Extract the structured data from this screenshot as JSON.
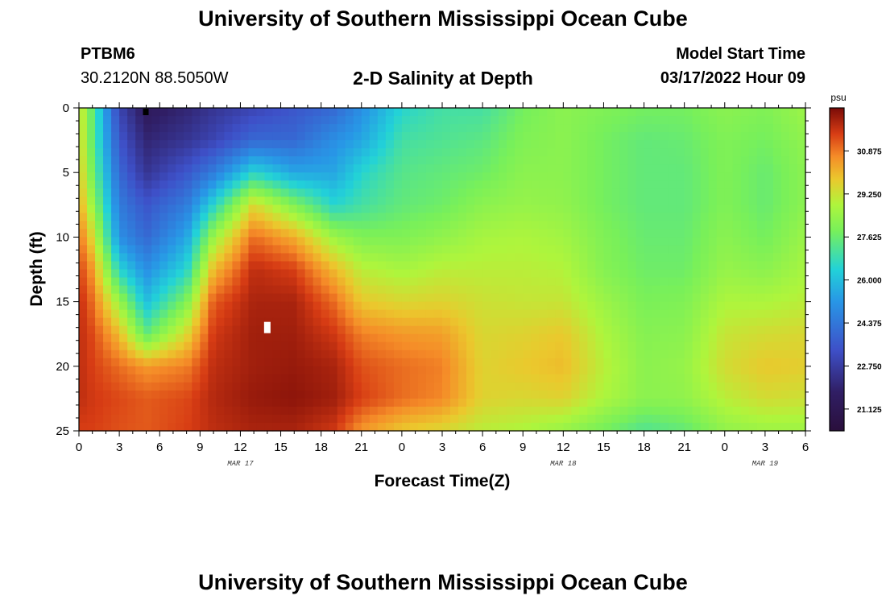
{
  "header": {
    "title": "University of Southern Mississippi Ocean Cube",
    "station": "PTBM6",
    "coordinates": "30.2120N  88.5050W",
    "subtitle": "2-D Salinity at Depth",
    "model_start_label": "Model Start Time",
    "model_start_value": "03/17/2022 Hour 09"
  },
  "footer": {
    "title": "University of Southern Mississippi Ocean Cube"
  },
  "colors": {
    "low": "#2a0f3c",
    "mid_blue": "#3e50c8",
    "cyan": "#22d2d8",
    "green": "#a8f43c",
    "orange": "#f07a20",
    "high": "#7a0b08"
  },
  "chart_data": {
    "type": "heatmap",
    "title": "2-D Salinity at Depth",
    "xlabel": "Forecast Time(Z)",
    "ylabel": "Depth (ft)",
    "x_ticks": [
      "0",
      "3",
      "6",
      "9",
      "12",
      "15",
      "18",
      "21",
      "0",
      "3",
      "6",
      "9",
      "12",
      "15",
      "18",
      "21",
      "0",
      "3",
      "6"
    ],
    "x_range_hours": [
      0,
      54
    ],
    "y_ticks": [
      "0",
      "5",
      "10",
      "15",
      "20",
      "25"
    ],
    "y_range_ft": [
      0,
      25
    ],
    "date_labels": [
      {
        "text": "MAR 17",
        "hour": 12
      },
      {
        "text": "MAR 18",
        "hour": 36
      },
      {
        "text": "MAR 19",
        "hour": 51
      }
    ],
    "colorbar": {
      "unit": "psu",
      "range": [
        20.3,
        32.5
      ],
      "ticks": [
        "30.875",
        "29.250",
        "27.625",
        "26.000",
        "24.375",
        "22.750",
        "21.125"
      ]
    },
    "markers": [
      {
        "type": "surface",
        "hour": 5,
        "depth_ft": 0.3
      },
      {
        "type": "bottom",
        "hour": 14,
        "depth_ft": 17
      }
    ],
    "salinity_anchors_psu": {
      "hours": [
        0,
        1,
        3,
        5,
        8,
        10,
        13,
        16,
        19,
        21,
        24,
        27,
        30,
        33,
        36,
        39,
        42,
        45,
        48,
        51,
        54
      ],
      "depths_ft": [
        0,
        2.5,
        5,
        7.5,
        10,
        12.5,
        15,
        17.5,
        20,
        22.5,
        25
      ],
      "values": [
        [
          29.5,
          27.5,
          23.0,
          21.5,
          22.0,
          22.5,
          23.0,
          23.5,
          24.0,
          25.0,
          26.5,
          27.0,
          27.0,
          27.8,
          28.2,
          28.0,
          27.8,
          27.8,
          28.2,
          28.0,
          28.5
        ],
        [
          29.7,
          27.5,
          23.5,
          22.0,
          22.5,
          23.0,
          24.0,
          24.0,
          25.0,
          25.5,
          27.0,
          27.2,
          27.4,
          28.0,
          28.2,
          27.8,
          27.5,
          27.6,
          28.0,
          27.8,
          28.3
        ],
        [
          29.9,
          27.8,
          24.0,
          22.5,
          23.5,
          24.5,
          26.5,
          25.5,
          25.5,
          26.5,
          27.3,
          27.5,
          27.7,
          28.2,
          28.2,
          27.8,
          27.5,
          27.5,
          28.0,
          27.6,
          28.2
        ],
        [
          30.3,
          28.5,
          24.5,
          23.5,
          24.5,
          26.5,
          29.5,
          28.0,
          26.5,
          27.0,
          27.5,
          27.7,
          28.2,
          28.4,
          28.3,
          27.8,
          27.5,
          27.5,
          28.0,
          27.6,
          28.2
        ],
        [
          31.0,
          29.5,
          25.0,
          24.0,
          25.5,
          28.5,
          31.0,
          30.2,
          28.5,
          28.0,
          28.0,
          28.3,
          28.7,
          28.8,
          28.6,
          28.0,
          27.6,
          27.6,
          28.2,
          27.8,
          28.5
        ],
        [
          31.5,
          30.5,
          26.5,
          25.0,
          26.5,
          30.0,
          31.8,
          31.5,
          30.0,
          29.0,
          28.7,
          29.0,
          29.0,
          29.0,
          28.9,
          28.1,
          27.7,
          27.7,
          28.4,
          28.2,
          28.7
        ],
        [
          31.8,
          31.0,
          28.5,
          26.0,
          28.0,
          31.2,
          32.0,
          32.0,
          31.0,
          29.8,
          29.5,
          29.6,
          29.3,
          29.2,
          29.2,
          28.5,
          27.9,
          28.0,
          28.8,
          28.8,
          29.0
        ],
        [
          31.8,
          31.4,
          30.0,
          27.5,
          29.5,
          31.6,
          32.1,
          32.1,
          31.6,
          30.8,
          30.5,
          30.4,
          29.5,
          29.6,
          29.8,
          28.8,
          28.1,
          28.2,
          29.2,
          29.4,
          29.5
        ],
        [
          31.8,
          31.5,
          31.0,
          30.5,
          30.8,
          31.8,
          32.1,
          32.2,
          32.0,
          31.3,
          31.0,
          30.8,
          29.6,
          29.8,
          30.0,
          29.0,
          28.2,
          28.4,
          29.4,
          29.8,
          29.7
        ],
        [
          31.8,
          31.6,
          31.4,
          31.2,
          31.4,
          31.9,
          32.2,
          32.3,
          32.1,
          31.5,
          31.0,
          30.7,
          29.6,
          29.5,
          29.6,
          28.8,
          28.2,
          28.3,
          29.0,
          29.4,
          29.3
        ],
        [
          31.5,
          31.5,
          31.3,
          31.2,
          31.5,
          31.8,
          32.0,
          32.0,
          31.6,
          30.5,
          29.8,
          29.5,
          29.0,
          28.8,
          28.4,
          27.8,
          27.2,
          27.5,
          28.3,
          28.5,
          28.5
        ]
      ]
    }
  }
}
